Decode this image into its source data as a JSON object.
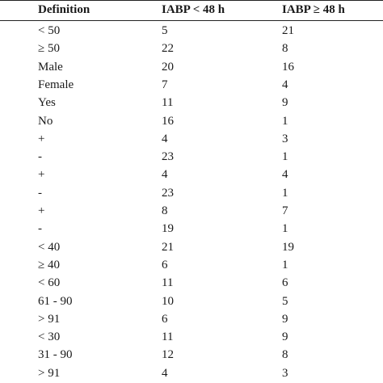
{
  "table": {
    "columns": [
      "Definition",
      "IABP < 48 h",
      "IABP ≥ 48 h"
    ],
    "rows": [
      [
        "< 50",
        "5",
        "21"
      ],
      [
        "≥ 50",
        "22",
        "8"
      ],
      [
        "Male",
        "20",
        "16"
      ],
      [
        "Female",
        "7",
        "4"
      ],
      [
        "Yes",
        "11",
        "9"
      ],
      [
        "No",
        "16",
        "1"
      ],
      [
        "+",
        "4",
        "3"
      ],
      [
        "-",
        "23",
        "1"
      ],
      [
        "+",
        "4",
        "4"
      ],
      [
        "-",
        "23",
        "1"
      ],
      [
        "+",
        "8",
        "7"
      ],
      [
        "-",
        "19",
        "1"
      ],
      [
        "< 40",
        "21",
        "19"
      ],
      [
        "≥ 40",
        "6",
        "1"
      ],
      [
        "< 60",
        "11",
        "6"
      ],
      [
        "61 - 90",
        "10",
        "5"
      ],
      [
        "> 91",
        "6",
        "9"
      ],
      [
        "< 30",
        "11",
        "9"
      ],
      [
        "31 - 90",
        "12",
        "8"
      ],
      [
        "> 91",
        "4",
        "3"
      ]
    ]
  }
}
